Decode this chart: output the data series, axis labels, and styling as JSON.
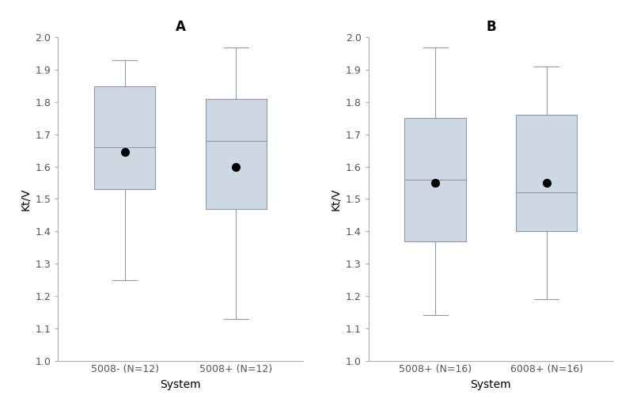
{
  "panel_A": {
    "title": "A",
    "xlabel": "System",
    "ylabel": "Kt/V",
    "ylim": [
      1.0,
      2.0
    ],
    "yticks": [
      1.0,
      1.1,
      1.2,
      1.3,
      1.4,
      1.5,
      1.6,
      1.7,
      1.8,
      1.9,
      2.0
    ],
    "boxes": [
      {
        "label": "5008- (N=12)",
        "whisker_low": 1.25,
        "q1": 1.53,
        "median": 1.66,
        "q3": 1.85,
        "whisker_high": 1.93,
        "mean": 1.645
      },
      {
        "label": "5008+ (N=12)",
        "whisker_low": 1.13,
        "q1": 1.47,
        "median": 1.68,
        "q3": 1.81,
        "whisker_high": 1.97,
        "mean": 1.6
      }
    ]
  },
  "panel_B": {
    "title": "B",
    "xlabel": "System",
    "ylabel": "Kt/V",
    "ylim": [
      1.0,
      2.0
    ],
    "yticks": [
      1.0,
      1.1,
      1.2,
      1.3,
      1.4,
      1.5,
      1.6,
      1.7,
      1.8,
      1.9,
      2.0
    ],
    "boxes": [
      {
        "label": "5008+ (N=16)",
        "whisker_low": 1.14,
        "q1": 1.37,
        "median": 1.56,
        "q3": 1.75,
        "whisker_high": 1.97,
        "mean": 1.55
      },
      {
        "label": "6008+ (N=16)",
        "whisker_low": 1.19,
        "q1": 1.4,
        "median": 1.52,
        "q3": 1.76,
        "whisker_high": 1.91,
        "mean": 1.55
      }
    ]
  },
  "box_color": "#cdd8e3",
  "box_edge_color": "#8a9aaa",
  "whisker_color": "#8a9aaa",
  "median_color": "#8a9aaa",
  "mean_color": "#000000",
  "box_width": 0.55,
  "mean_marker_size": 7,
  "title_fontsize": 12,
  "label_fontsize": 10,
  "tick_fontsize": 9,
  "spine_color": "#aaaaaa",
  "tick_color": "#555555"
}
